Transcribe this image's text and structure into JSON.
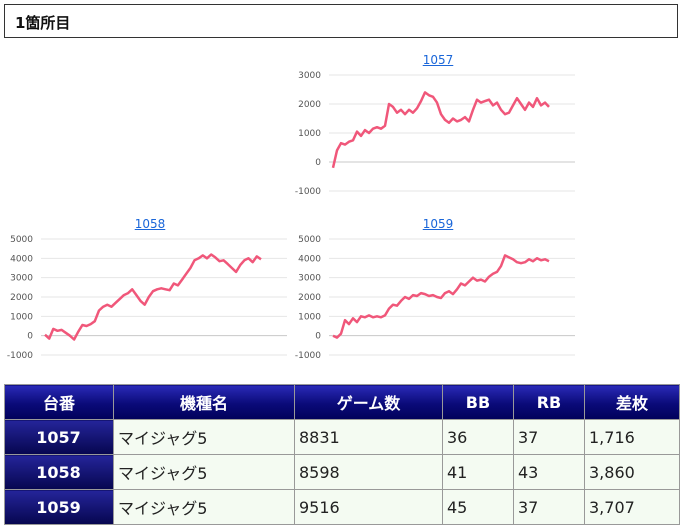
{
  "header": {
    "title": "1箇所目"
  },
  "colors": {
    "line": "#f0577a",
    "header_bg": "#0a0a78",
    "link": "#1a66d9"
  },
  "chart_data": [
    {
      "type": "line",
      "title": "1057",
      "ylim": [
        -1000,
        3000
      ],
      "yticks": [
        3000,
        2000,
        1000,
        0,
        -1000
      ],
      "grid": true,
      "values": [
        -200,
        400,
        650,
        600,
        700,
        750,
        1050,
        900,
        1100,
        1000,
        1150,
        1200,
        1150,
        1250,
        2000,
        1900,
        1700,
        1800,
        1650,
        1800,
        1700,
        1850,
        2100,
        2400,
        2300,
        2250,
        2050,
        1650,
        1450,
        1350,
        1500,
        1400,
        1450,
        1550,
        1400,
        1800,
        2150,
        2050,
        2100,
        2150,
        1950,
        2050,
        1800,
        1650,
        1700,
        1950,
        2200,
        2000,
        1800,
        2050,
        1900,
        2200,
        1950,
        2050,
        1900
      ]
    },
    {
      "type": "line",
      "title": "1058",
      "ylim": [
        -1000,
        5000
      ],
      "yticks": [
        5000,
        4000,
        3000,
        2000,
        1000,
        0,
        -1000
      ],
      "grid": true,
      "values": [
        50,
        -150,
        350,
        250,
        300,
        150,
        0,
        -200,
        200,
        550,
        500,
        600,
        750,
        1300,
        1500,
        1600,
        1500,
        1700,
        1900,
        2100,
        2200,
        2400,
        2100,
        1800,
        1600,
        2000,
        2300,
        2400,
        2450,
        2400,
        2350,
        2700,
        2600,
        2900,
        3200,
        3500,
        3900,
        4000,
        4150,
        4000,
        4200,
        4050,
        3850,
        3900,
        3700,
        3500,
        3300,
        3650,
        3900,
        4000,
        3800,
        4100,
        3950
      ]
    },
    {
      "type": "line",
      "title": "1059",
      "ylim": [
        -1000,
        5000
      ],
      "yticks": [
        5000,
        4000,
        3000,
        2000,
        1000,
        0,
        -1000
      ],
      "grid": true,
      "values": [
        0,
        -100,
        100,
        800,
        600,
        900,
        700,
        1000,
        950,
        1050,
        950,
        1000,
        950,
        1050,
        1400,
        1600,
        1550,
        1800,
        2000,
        1900,
        2100,
        2050,
        2200,
        2150,
        2050,
        2100,
        2000,
        1950,
        2200,
        2300,
        2150,
        2400,
        2700,
        2600,
        2800,
        3000,
        2850,
        2900,
        2800,
        3050,
        3200,
        3300,
        3600,
        4150,
        4050,
        3950,
        3800,
        3750,
        3800,
        3950,
        3850,
        4000,
        3900,
        3950,
        3850
      ]
    }
  ],
  "table": {
    "headers": [
      "台番",
      "機種名",
      "ゲーム数",
      "BB",
      "RB",
      "差枚"
    ],
    "rows": [
      [
        "1057",
        "マイジャグ5",
        "8831",
        "36",
        "37",
        "1,716"
      ],
      [
        "1058",
        "マイジャグ5",
        "8598",
        "41",
        "43",
        "3,860"
      ],
      [
        "1059",
        "マイジャグ5",
        "9516",
        "45",
        "37",
        "3,707"
      ]
    ]
  }
}
